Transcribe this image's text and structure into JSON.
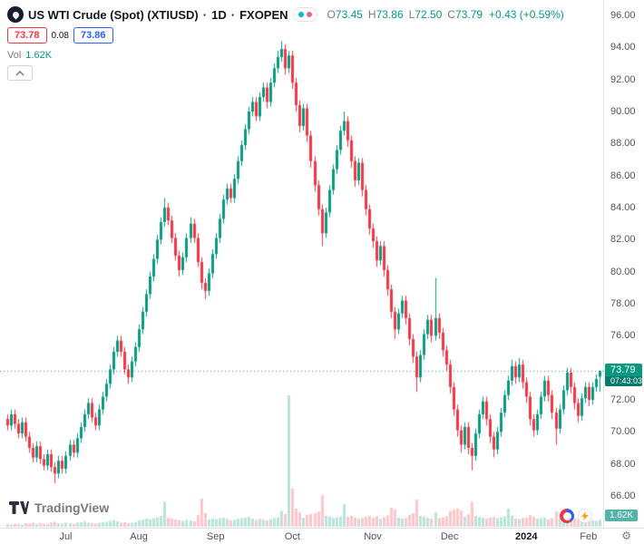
{
  "header": {
    "symbol_title": "US WTI Crude (Spot) (XTIUSD)",
    "separator": "·",
    "interval": "1D",
    "broker": "FXOPEN",
    "ohlc": [
      {
        "k": "O",
        "v": "73.45"
      },
      {
        "k": "H",
        "v": "73.86"
      },
      {
        "k": "L",
        "v": "72.50"
      },
      {
        "k": "C",
        "v": "73.79"
      }
    ],
    "change": "+0.43 (+0.59%)",
    "bid": "73.78",
    "spread": "0.08",
    "ask": "73.86",
    "vol_label": "Vol",
    "vol_value": "1.62K"
  },
  "footer": {
    "brand": "TradingView"
  },
  "axis_icons": {
    "gear": "⚙"
  },
  "chart_data": {
    "type": "candlestick",
    "title": "US WTI Crude (Spot) (XTIUSD) · 1D · FXOPEN",
    "price_axis": {
      "min": 66,
      "max": 96,
      "step": 2
    },
    "time_ticks": [
      {
        "label": "Jul",
        "index": 16
      },
      {
        "label": "Aug",
        "index": 36
      },
      {
        "label": "Sep",
        "index": 57
      },
      {
        "label": "Oct",
        "index": 78
      },
      {
        "label": "Nov",
        "index": 100
      },
      {
        "label": "Dec",
        "index": 121
      },
      {
        "label": "2024",
        "index": 142,
        "year": true
      },
      {
        "label": "Feb",
        "index": 159
      }
    ],
    "last_price": 73.79,
    "last_price_label": "73.79",
    "countdown": "07:43:03",
    "last_volume_label": "1.62K",
    "colors": {
      "up": "#089981",
      "down": "#F23645",
      "vol_up": "rgba(8,153,129,0.28)",
      "vol_down": "rgba(242,54,69,0.28)",
      "last_line": "#089981"
    },
    "candles": [
      [
        70.8,
        71.1,
        70.1,
        70.4,
        0.6
      ],
      [
        70.4,
        71.4,
        70.1,
        71.1,
        0.5
      ],
      [
        71.1,
        71.4,
        70.2,
        70.5,
        0.7
      ],
      [
        70.5,
        70.8,
        69.6,
        69.9,
        0.6
      ],
      [
        69.9,
        70.9,
        69.6,
        70.6,
        0.5
      ],
      [
        70.6,
        70.9,
        69.4,
        69.7,
        0.8
      ],
      [
        69.7,
        70.0,
        68.7,
        69.0,
        0.7
      ],
      [
        69.0,
        69.3,
        68.1,
        68.4,
        0.9
      ],
      [
        68.4,
        69.4,
        68.1,
        69.1,
        0.6
      ],
      [
        69.1,
        69.4,
        68.0,
        68.3,
        0.8
      ],
      [
        68.3,
        68.6,
        67.6,
        67.9,
        0.7
      ],
      [
        67.9,
        68.9,
        67.6,
        68.6,
        0.6
      ],
      [
        68.6,
        68.9,
        67.5,
        67.8,
        0.9
      ],
      [
        67.8,
        68.1,
        66.8,
        67.4,
        1.1
      ],
      [
        67.4,
        68.5,
        67.1,
        68.2,
        0.8
      ],
      [
        68.2,
        68.5,
        67.4,
        67.7,
        0.7
      ],
      [
        67.7,
        68.8,
        67.4,
        68.5,
        0.9
      ],
      [
        68.5,
        69.5,
        68.2,
        69.2,
        0.8
      ],
      [
        69.2,
        69.5,
        68.4,
        68.7,
        0.6
      ],
      [
        68.7,
        69.9,
        68.4,
        69.6,
        0.9
      ],
      [
        69.6,
        70.6,
        69.3,
        70.3,
        1.0
      ],
      [
        70.3,
        71.4,
        70.0,
        71.1,
        1.2
      ],
      [
        71.1,
        72.1,
        70.8,
        71.8,
        0.9
      ],
      [
        71.8,
        72.1,
        70.6,
        70.9,
        0.8
      ],
      [
        70.9,
        71.2,
        70.1,
        70.4,
        0.7
      ],
      [
        70.4,
        71.7,
        70.1,
        71.4,
        0.9
      ],
      [
        71.4,
        72.5,
        71.1,
        72.2,
        1.0
      ],
      [
        72.2,
        73.3,
        71.9,
        73.0,
        1.1
      ],
      [
        73.0,
        74.2,
        72.7,
        73.9,
        1.3
      ],
      [
        73.9,
        75.3,
        73.6,
        75.0,
        1.5
      ],
      [
        75.0,
        76.0,
        74.7,
        75.7,
        1.2
      ],
      [
        75.7,
        76.0,
        74.7,
        75.0,
        0.9
      ],
      [
        75.0,
        75.3,
        73.6,
        73.9,
        1.0
      ],
      [
        73.9,
        74.2,
        73.0,
        73.4,
        0.8
      ],
      [
        73.4,
        74.7,
        73.1,
        74.4,
        0.9
      ],
      [
        74.4,
        75.6,
        74.1,
        75.3,
        1.1
      ],
      [
        75.3,
        76.7,
        75.0,
        76.4,
        1.4
      ],
      [
        76.4,
        77.8,
        76.1,
        77.5,
        1.6
      ],
      [
        77.5,
        78.9,
        77.2,
        78.6,
        1.8
      ],
      [
        78.6,
        80.0,
        78.3,
        79.7,
        1.7
      ],
      [
        79.7,
        81.1,
        79.4,
        80.8,
        1.9
      ],
      [
        80.8,
        82.3,
        80.5,
        82.0,
        2.1
      ],
      [
        82.0,
        83.4,
        81.7,
        83.1,
        2.4
      ],
      [
        83.1,
        84.6,
        82.8,
        84.0,
        5.5
      ],
      [
        84.0,
        84.3,
        82.9,
        83.2,
        2.0
      ],
      [
        83.2,
        83.5,
        81.8,
        82.1,
        1.8
      ],
      [
        82.1,
        82.4,
        80.7,
        81.0,
        1.6
      ],
      [
        81.0,
        81.3,
        79.7,
        80.1,
        1.5
      ],
      [
        80.1,
        81.2,
        79.8,
        80.9,
        1.3
      ],
      [
        80.9,
        82.4,
        80.6,
        82.1,
        1.5
      ],
      [
        82.1,
        83.4,
        81.8,
        83.0,
        1.4
      ],
      [
        83.0,
        83.3,
        81.8,
        82.1,
        1.2
      ],
      [
        82.1,
        82.4,
        80.3,
        80.6,
        2.6
      ],
      [
        80.6,
        80.9,
        78.9,
        79.3,
        6.2
      ],
      [
        79.3,
        79.6,
        78.3,
        78.8,
        3.0
      ],
      [
        78.8,
        80.2,
        78.5,
        79.9,
        1.6
      ],
      [
        79.9,
        81.4,
        79.6,
        81.1,
        1.8
      ],
      [
        81.1,
        82.4,
        80.8,
        82.1,
        1.7
      ],
      [
        82.1,
        83.6,
        81.8,
        83.3,
        1.9
      ],
      [
        83.3,
        84.8,
        83.0,
        84.5,
        2.0
      ],
      [
        84.5,
        85.5,
        84.2,
        85.2,
        1.7
      ],
      [
        85.2,
        85.5,
        84.3,
        84.6,
        1.4
      ],
      [
        84.6,
        86.1,
        84.3,
        85.8,
        1.6
      ],
      [
        85.8,
        87.2,
        85.5,
        86.9,
        1.8
      ],
      [
        86.9,
        88.2,
        86.6,
        87.9,
        1.9
      ],
      [
        87.9,
        89.2,
        87.6,
        88.9,
        2.0
      ],
      [
        88.9,
        90.3,
        88.6,
        90.0,
        2.2
      ],
      [
        90.0,
        90.9,
        89.7,
        90.6,
        1.8
      ],
      [
        90.6,
        90.9,
        89.4,
        89.7,
        1.5
      ],
      [
        89.7,
        91.2,
        89.4,
        90.9,
        1.7
      ],
      [
        90.9,
        91.8,
        90.6,
        91.5,
        1.6
      ],
      [
        91.5,
        91.8,
        90.2,
        90.6,
        1.4
      ],
      [
        90.6,
        92.1,
        90.3,
        91.8,
        1.7
      ],
      [
        91.8,
        93.0,
        91.5,
        92.7,
        1.9
      ],
      [
        92.7,
        93.8,
        92.4,
        93.4,
        2.1
      ],
      [
        93.4,
        94.4,
        93.1,
        93.9,
        3.5
      ],
      [
        93.9,
        94.2,
        92.3,
        92.7,
        2.8
      ],
      [
        92.7,
        93.8,
        92.4,
        93.5,
        29.0
      ],
      [
        93.5,
        93.8,
        91.4,
        91.8,
        8.5
      ],
      [
        91.8,
        92.1,
        90.0,
        90.4,
        4.0
      ],
      [
        90.4,
        90.7,
        88.7,
        89.1,
        3.2
      ],
      [
        89.1,
        90.5,
        88.8,
        90.2,
        2.0
      ],
      [
        90.2,
        90.5,
        88.1,
        88.5,
        2.6
      ],
      [
        88.5,
        88.8,
        86.5,
        86.9,
        2.8
      ],
      [
        86.9,
        87.2,
        85.0,
        85.4,
        3.0
      ],
      [
        85.4,
        85.7,
        83.5,
        83.9,
        3.4
      ],
      [
        83.9,
        84.2,
        81.6,
        82.4,
        7.0
      ],
      [
        82.4,
        84.0,
        82.1,
        83.7,
        2.4
      ],
      [
        83.7,
        85.4,
        83.4,
        85.1,
        2.2
      ],
      [
        85.1,
        86.7,
        84.8,
        86.4,
        2.0
      ],
      [
        86.4,
        87.9,
        86.1,
        87.6,
        2.1
      ],
      [
        87.6,
        89.1,
        87.3,
        88.8,
        2.3
      ],
      [
        88.8,
        90.0,
        88.5,
        89.4,
        5.0
      ],
      [
        89.4,
        89.7,
        87.8,
        88.2,
        2.2
      ],
      [
        88.2,
        88.5,
        86.5,
        86.9,
        2.4
      ],
      [
        86.9,
        87.2,
        85.3,
        85.7,
        2.1
      ],
      [
        85.7,
        87.1,
        85.4,
        86.8,
        1.8
      ],
      [
        86.8,
        87.1,
        84.7,
        85.1,
        2.0
      ],
      [
        85.1,
        85.4,
        83.5,
        83.9,
        2.2
      ],
      [
        83.9,
        84.2,
        82.3,
        82.7,
        2.4
      ],
      [
        82.7,
        83.0,
        81.5,
        81.9,
        2.0
      ],
      [
        81.9,
        82.2,
        80.3,
        80.7,
        2.3
      ],
      [
        80.7,
        81.9,
        80.4,
        81.6,
        1.7
      ],
      [
        81.6,
        81.9,
        79.7,
        80.1,
        2.1
      ],
      [
        80.1,
        80.4,
        78.5,
        78.9,
        2.5
      ],
      [
        78.9,
        79.2,
        77.1,
        77.5,
        4.2
      ],
      [
        77.5,
        77.8,
        75.8,
        76.4,
        3.8
      ],
      [
        76.4,
        77.7,
        76.1,
        77.4,
        2.0
      ],
      [
        77.4,
        78.5,
        77.1,
        78.2,
        1.8
      ],
      [
        78.2,
        78.5,
        76.7,
        77.1,
        1.9
      ],
      [
        77.1,
        77.4,
        75.4,
        75.8,
        2.6
      ],
      [
        75.8,
        76.1,
        74.3,
        74.7,
        3.0
      ],
      [
        74.7,
        75.0,
        72.5,
        73.4,
        6.0
      ],
      [
        73.4,
        75.1,
        73.1,
        74.8,
        2.4
      ],
      [
        74.8,
        76.4,
        74.5,
        76.1,
        2.2
      ],
      [
        76.1,
        77.3,
        75.8,
        77.0,
        2.0
      ],
      [
        77.0,
        77.3,
        75.6,
        76.0,
        1.8
      ],
      [
        76.0,
        79.6,
        75.7,
        77.1,
        3.2
      ],
      [
        77.1,
        77.4,
        75.8,
        76.2,
        1.9
      ],
      [
        76.2,
        76.5,
        74.7,
        75.1,
        2.1
      ],
      [
        75.1,
        75.4,
        73.8,
        74.2,
        2.3
      ],
      [
        74.2,
        74.5,
        72.4,
        72.8,
        3.5
      ],
      [
        72.8,
        73.1,
        71.0,
        71.4,
        3.8
      ],
      [
        71.4,
        71.7,
        69.7,
        70.1,
        4.0
      ],
      [
        70.1,
        70.4,
        68.7,
        69.2,
        3.6
      ],
      [
        69.2,
        70.6,
        68.9,
        70.3,
        2.2
      ],
      [
        70.3,
        70.6,
        68.6,
        69.0,
        2.8
      ],
      [
        69.0,
        69.3,
        67.6,
        68.5,
        5.5
      ],
      [
        68.5,
        70.2,
        68.2,
        69.9,
        2.4
      ],
      [
        69.9,
        71.4,
        69.6,
        71.1,
        2.2
      ],
      [
        71.1,
        72.2,
        70.8,
        71.9,
        2.0
      ],
      [
        71.9,
        72.2,
        70.4,
        70.8,
        1.8
      ],
      [
        70.8,
        71.1,
        69.3,
        69.7,
        2.0
      ],
      [
        69.7,
        70.0,
        68.4,
        68.9,
        2.2
      ],
      [
        68.9,
        70.3,
        68.6,
        70.0,
        1.9
      ],
      [
        70.0,
        71.5,
        69.7,
        71.2,
        2.1
      ],
      [
        71.2,
        72.6,
        70.9,
        72.3,
        2.3
      ],
      [
        72.3,
        73.5,
        72.0,
        73.2,
        4.0
      ],
      [
        73.2,
        74.5,
        72.9,
        74.1,
        2.5
      ],
      [
        74.1,
        74.4,
        73.0,
        73.4,
        1.8
      ],
      [
        73.4,
        74.6,
        73.1,
        74.2,
        1.7
      ],
      [
        74.2,
        74.5,
        72.7,
        73.1,
        1.9
      ],
      [
        73.1,
        73.4,
        71.8,
        72.2,
        2.0
      ],
      [
        72.2,
        72.5,
        70.4,
        70.8,
        2.6
      ],
      [
        70.8,
        71.1,
        69.7,
        70.1,
        2.2
      ],
      [
        70.1,
        71.4,
        69.8,
        71.1,
        1.8
      ],
      [
        71.1,
        72.5,
        70.8,
        72.2,
        1.9
      ],
      [
        72.2,
        73.5,
        71.9,
        73.2,
        2.1
      ],
      [
        73.2,
        73.5,
        71.9,
        72.3,
        1.7
      ],
      [
        72.3,
        72.6,
        70.8,
        71.2,
        1.9
      ],
      [
        71.2,
        71.5,
        69.2,
        70.2,
        3.4
      ],
      [
        70.2,
        71.7,
        69.9,
        71.4,
        2.0
      ],
      [
        71.4,
        72.9,
        71.1,
        72.6,
        2.2
      ],
      [
        72.6,
        74.0,
        72.3,
        73.7,
        2.4
      ],
      [
        73.7,
        74.0,
        72.4,
        72.8,
        1.8
      ],
      [
        72.8,
        73.1,
        71.4,
        71.8,
        1.9
      ],
      [
        71.8,
        72.1,
        70.6,
        71.0,
        1.7
      ],
      [
        71.0,
        72.4,
        70.7,
        72.1,
        1.8
      ],
      [
        72.1,
        73.1,
        71.8,
        72.8,
        1.6
      ],
      [
        72.8,
        73.1,
        71.6,
        72.0,
        1.5
      ],
      [
        72.0,
        73.1,
        71.7,
        72.8,
        1.4
      ],
      [
        72.8,
        73.6,
        72.5,
        73.3,
        1.3
      ],
      [
        73.45,
        73.86,
        72.5,
        73.79,
        1.62
      ]
    ]
  }
}
